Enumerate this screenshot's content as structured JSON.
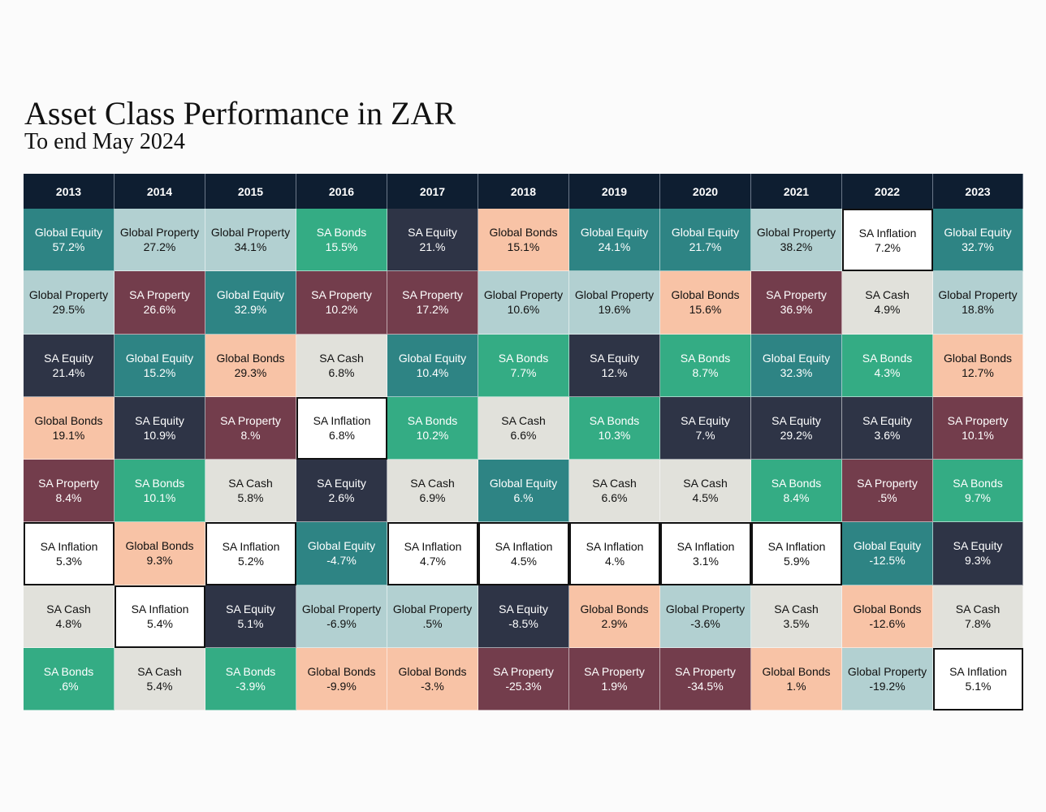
{
  "chart_data": {
    "type": "table",
    "title": "Asset Class Performance in ZAR",
    "subtitle": "To end May 2024",
    "years": [
      "2013",
      "2014",
      "2015",
      "2016",
      "2017",
      "2018",
      "2019",
      "2020",
      "2021",
      "2022",
      "2023"
    ],
    "colors": {
      "Global Equity": "#2e8484",
      "Global Property": "#b2d0d1",
      "SA Bonds": "#34ac84",
      "SA Equity": "#2e3446",
      "Global Bonds": "#f8c3a6",
      "SA Property": "#733d4c",
      "SA Cash": "#e1e1db",
      "SA Inflation": "#ffffff"
    },
    "text_colors": {
      "Global Equity": "#ffffff",
      "Global Property": "#111111",
      "SA Bonds": "#ffffff",
      "SA Equity": "#ffffff",
      "Global Bonds": "#111111",
      "SA Property": "#ffffff",
      "SA Cash": "#111111",
      "SA Inflation": "#111111"
    },
    "columns": [
      [
        [
          "Global Equity",
          "57.2%"
        ],
        [
          "Global Property",
          "29.5%"
        ],
        [
          "SA Equity",
          "21.4%"
        ],
        [
          "Global Bonds",
          "19.1%"
        ],
        [
          "SA Property",
          "8.4%"
        ],
        [
          "SA Inflation",
          "5.3%"
        ],
        [
          "SA Cash",
          "4.8%"
        ],
        [
          "SA Bonds",
          ".6%"
        ]
      ],
      [
        [
          "Global Property",
          "27.2%"
        ],
        [
          "SA Property",
          "26.6%"
        ],
        [
          "Global Equity",
          "15.2%"
        ],
        [
          "SA Equity",
          "10.9%"
        ],
        [
          "SA Bonds",
          "10.1%"
        ],
        [
          "Global Bonds",
          "9.3%"
        ],
        [
          "SA Inflation",
          "5.4%"
        ],
        [
          "SA Cash",
          "5.4%"
        ]
      ],
      [
        [
          "Global Property",
          "34.1%"
        ],
        [
          "Global Equity",
          "32.9%"
        ],
        [
          "Global Bonds",
          "29.3%"
        ],
        [
          "SA Property",
          "8.%"
        ],
        [
          "SA Cash",
          "5.8%"
        ],
        [
          "SA Inflation",
          "5.2%"
        ],
        [
          "SA Equity",
          "5.1%"
        ],
        [
          "SA Bonds",
          "-3.9%"
        ]
      ],
      [
        [
          "SA Bonds",
          "15.5%"
        ],
        [
          "SA Property",
          "10.2%"
        ],
        [
          "SA Cash",
          "6.8%"
        ],
        [
          "SA Inflation",
          "6.8%"
        ],
        [
          "SA Equity",
          "2.6%"
        ],
        [
          "Global Equity",
          "-4.7%"
        ],
        [
          "Global Property",
          "-6.9%"
        ],
        [
          "Global Bonds",
          "-9.9%"
        ]
      ],
      [
        [
          "SA Equity",
          "21.%"
        ],
        [
          "SA Property",
          "17.2%"
        ],
        [
          "Global Equity",
          "10.4%"
        ],
        [
          "SA Bonds",
          "10.2%"
        ],
        [
          "SA Cash",
          "6.9%"
        ],
        [
          "SA Inflation",
          "4.7%"
        ],
        [
          "Global Property",
          ".5%"
        ],
        [
          "Global Bonds",
          "-3.%"
        ]
      ],
      [
        [
          "Global Bonds",
          "15.1%"
        ],
        [
          "Global Property",
          "10.6%"
        ],
        [
          "SA Bonds",
          "7.7%"
        ],
        [
          "SA Cash",
          "6.6%"
        ],
        [
          "Global Equity",
          "6.%"
        ],
        [
          "SA Inflation",
          "4.5%"
        ],
        [
          "SA Equity",
          "-8.5%"
        ],
        [
          "SA Property",
          "-25.3%"
        ]
      ],
      [
        [
          "Global Equity",
          "24.1%"
        ],
        [
          "Global Property",
          "19.6%"
        ],
        [
          "SA Equity",
          "12.%"
        ],
        [
          "SA Bonds",
          "10.3%"
        ],
        [
          "SA Cash",
          "6.6%"
        ],
        [
          "SA Inflation",
          "4.%"
        ],
        [
          "Global Bonds",
          "2.9%"
        ],
        [
          "SA Property",
          "1.9%"
        ]
      ],
      [
        [
          "Global Equity",
          "21.7%"
        ],
        [
          "Global Bonds",
          "15.6%"
        ],
        [
          "SA Bonds",
          "8.7%"
        ],
        [
          "SA Equity",
          "7.%"
        ],
        [
          "SA Cash",
          "4.5%"
        ],
        [
          "SA Inflation",
          "3.1%"
        ],
        [
          "Global Property",
          "-3.6%"
        ],
        [
          "SA Property",
          "-34.5%"
        ]
      ],
      [
        [
          "Global Property",
          "38.2%"
        ],
        [
          "SA Property",
          "36.9%"
        ],
        [
          "Global Equity",
          "32.3%"
        ],
        [
          "SA Equity",
          "29.2%"
        ],
        [
          "SA Bonds",
          "8.4%"
        ],
        [
          "SA Inflation",
          "5.9%"
        ],
        [
          "SA Cash",
          "3.5%"
        ],
        [
          "Global Bonds",
          "1.%"
        ]
      ],
      [
        [
          "SA Inflation",
          "7.2%"
        ],
        [
          "SA Cash",
          "4.9%"
        ],
        [
          "SA Bonds",
          "4.3%"
        ],
        [
          "SA Equity",
          "3.6%"
        ],
        [
          "SA Property",
          ".5%"
        ],
        [
          "Global Equity",
          "-12.5%"
        ],
        [
          "Global Bonds",
          "-12.6%"
        ],
        [
          "Global Property",
          "-19.2%"
        ]
      ],
      [
        [
          "Global Equity",
          "32.7%"
        ],
        [
          "Global Property",
          "18.8%"
        ],
        [
          "Global Bonds",
          "12.7%"
        ],
        [
          "SA Property",
          "10.1%"
        ],
        [
          "SA Bonds",
          "9.7%"
        ],
        [
          "SA Equity",
          "9.3%"
        ],
        [
          "SA Cash",
          "7.8%"
        ],
        [
          "SA Inflation",
          "5.1%"
        ]
      ]
    ]
  }
}
